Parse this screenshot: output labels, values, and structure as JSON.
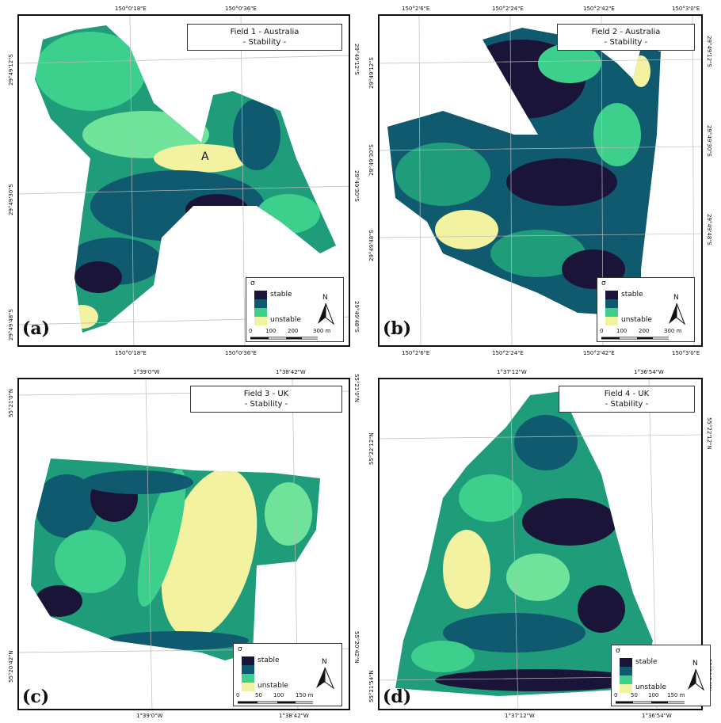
{
  "colors": {
    "stable": "#1a1438",
    "mid1": "#0f5a6e",
    "mid2": "#1f9c7a",
    "mid3": "#3cd08c",
    "unstable": "#f2f2a0"
  },
  "legend": {
    "sigma": "σ",
    "stable": "stable",
    "unstable": "unstable"
  },
  "north": "N",
  "panels": [
    {
      "label": "(a)",
      "title_line1": "Field 1 - Australia",
      "title_line2": "- Stability -",
      "annotation": "A",
      "top_coords": [
        "150°0'18\"E",
        "150°0'36\"E"
      ],
      "bottom_coords": [
        "150°0'18\"E",
        "150°0'36\"E"
      ],
      "left_coords": [
        "29°49'12\"S",
        "29°49'30\"S",
        "29°49'48\"S"
      ],
      "right_coords": [
        "29°49'12\"S",
        "29°49'30\"S",
        "29°49'48\"S"
      ],
      "scale": [
        "0",
        "100",
        "200",
        "300 m"
      ]
    },
    {
      "label": "(b)",
      "title_line1": "Field 2 - Australia",
      "title_line2": "- Stability -",
      "top_coords": [
        "150°2'6\"E",
        "150°2'24\"E",
        "150°2'42\"E",
        "150°3'0\"E"
      ],
      "bottom_coords": [
        "150°2'6\"E",
        "150°2'24\"E",
        "150°2'42\"E",
        "150°3'0\"E"
      ],
      "left_coords": [
        "29°49'12\"S",
        "29°49'30\"S",
        "29°49'48\"S"
      ],
      "right_coords": [
        "29°49'12\"S",
        "29°49'30\"S",
        "29°49'48\"S"
      ],
      "scale": [
        "0",
        "100",
        "200",
        "300 m"
      ]
    },
    {
      "label": "(c)",
      "title_line1": "Field 3 - UK",
      "title_line2": "- Stability -",
      "top_coords": [
        "1°39'0\"W",
        "1°38'42\"W"
      ],
      "bottom_coords": [
        "1°39'0\"W",
        "1°38'42\"W"
      ],
      "left_coords": [
        "55°21'0\"N",
        "55°20'42\"N"
      ],
      "right_coords": [
        "55°21'0\"N",
        "55°20'42\"N"
      ],
      "scale": [
        "0",
        "50",
        "100",
        "150 m"
      ]
    },
    {
      "label": "(d)",
      "title_line1": "Field 4 - UK",
      "title_line2": "- Stability -",
      "top_coords": [
        "1°37'12\"W",
        "1°36'54\"W"
      ],
      "bottom_coords": [
        "1°37'12\"W",
        "1°36'54\"W"
      ],
      "left_coords": [
        "55°22'12\"N",
        "55°21'54\"N"
      ],
      "right_coords": [
        "55°22'12\"N",
        "55°21'54\"N"
      ],
      "scale": [
        "0",
        "50",
        "100",
        "150 m"
      ]
    }
  ]
}
